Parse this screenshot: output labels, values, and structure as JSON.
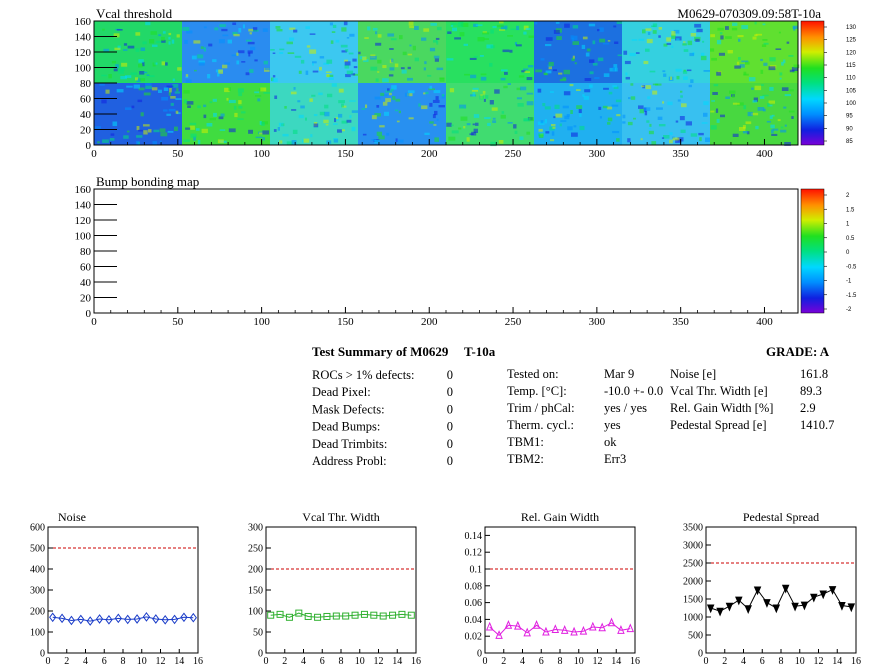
{
  "maps": {
    "top": {
      "title": "Vcal threshold",
      "id_label": "M0629-070309.09:58T-10a",
      "x_ticks": [
        "0",
        "50",
        "100",
        "150",
        "200",
        "250",
        "300",
        "350",
        "400"
      ],
      "y_ticks": [
        "0",
        "20",
        "40",
        "60",
        "80",
        "100",
        "120",
        "140",
        "160"
      ],
      "scale_labels": [
        "130",
        "125",
        "120",
        "115",
        "110",
        "105",
        "100",
        "95",
        "90",
        "85"
      ]
    },
    "bottom": {
      "title": "Bump bonding map",
      "x_ticks": [
        "0",
        "50",
        "100",
        "150",
        "200",
        "250",
        "300",
        "350",
        "400"
      ],
      "y_ticks": [
        "0",
        "20",
        "40",
        "60",
        "80",
        "100",
        "120",
        "140",
        "160"
      ],
      "scale_labels": [
        "2",
        "1.5",
        "1",
        "0.5",
        "0",
        "-0.5",
        "-1",
        "-1.5",
        "-2"
      ]
    }
  },
  "summary": {
    "heading": "Test Summary of M0629",
    "test_id": "T-10a",
    "grade": "GRADE:  A",
    "defects": [
      {
        "label": "ROCs > 1% defects:",
        "value": "0"
      },
      {
        "label": "Dead Pixel:",
        "value": "0"
      },
      {
        "label": "Mask Defects:",
        "value": "0"
      },
      {
        "label": "Dead Bumps:",
        "value": "0"
      },
      {
        "label": "Dead Trimbits:",
        "value": "0"
      },
      {
        "label": "Address Probl:",
        "value": "0"
      }
    ],
    "conditions": [
      {
        "label": "Tested on:",
        "value": "Mar 9"
      },
      {
        "label": "Temp. [°C]:",
        "value": "-10.0 +- 0.0"
      },
      {
        "label": "Trim / phCal:",
        "value": "yes / yes"
      },
      {
        "label": "Therm. cycl.:",
        "value": "yes"
      },
      {
        "label": "TBM1:",
        "value": "ok"
      },
      {
        "label": "TBM2:",
        "value": "Err3"
      }
    ],
    "results": [
      {
        "label": "Noise [e]",
        "value": "161.8"
      },
      {
        "label": "Vcal Thr. Width [e]",
        "value": "89.3"
      },
      {
        "label": "Rel. Gain Width [%]",
        "value": "2.9"
      },
      {
        "label": "Pedestal Spread [e]",
        "value": "1410.7"
      }
    ]
  },
  "chart_data": [
    {
      "type": "line",
      "title": "Noise",
      "x": [
        0,
        1,
        2,
        3,
        4,
        5,
        6,
        7,
        8,
        9,
        10,
        11,
        12,
        13,
        14,
        15
      ],
      "values": [
        170,
        165,
        155,
        160,
        152,
        162,
        158,
        165,
        160,
        162,
        172,
        162,
        158,
        160,
        170,
        168
      ],
      "ylim": [
        0,
        600
      ],
      "xlim": [
        0,
        16
      ],
      "threshold": 500,
      "y_ticks": [
        "0",
        "100",
        "200",
        "300",
        "400",
        "500",
        "600"
      ],
      "x_ticks": [
        "0",
        "2",
        "4",
        "6",
        "8",
        "10",
        "12",
        "14",
        "16"
      ],
      "color": "#1a3cc8",
      "marker": "diamond"
    },
    {
      "type": "line",
      "title": "Vcal Thr. Width",
      "x": [
        0,
        1,
        2,
        3,
        4,
        5,
        6,
        7,
        8,
        9,
        10,
        11,
        12,
        13,
        14,
        15
      ],
      "values": [
        90,
        92,
        85,
        95,
        87,
        85,
        87,
        88,
        88,
        90,
        92,
        90,
        88,
        90,
        92,
        90
      ],
      "ylim": [
        0,
        300
      ],
      "xlim": [
        0,
        16
      ],
      "threshold": 200,
      "y_ticks": [
        "0",
        "50",
        "100",
        "150",
        "200",
        "250",
        "300"
      ],
      "x_ticks": [
        "0",
        "2",
        "4",
        "6",
        "8",
        "10",
        "12",
        "14",
        "16"
      ],
      "color": "#30b030",
      "marker": "square"
    },
    {
      "type": "line",
      "title": "Rel. Gain Width",
      "x": [
        0,
        1,
        2,
        3,
        4,
        5,
        6,
        7,
        8,
        9,
        10,
        11,
        12,
        13,
        14,
        15
      ],
      "values": [
        0.031,
        0.021,
        0.033,
        0.032,
        0.024,
        0.033,
        0.025,
        0.028,
        0.027,
        0.025,
        0.026,
        0.031,
        0.03,
        0.036,
        0.027,
        0.029
      ],
      "ylim": [
        0,
        0.15
      ],
      "xlim": [
        0,
        16
      ],
      "threshold": 0.1,
      "y_ticks": [
        "0",
        "0.02",
        "0.04",
        "0.06",
        "0.08",
        "0.1",
        "0.12",
        "0.14"
      ],
      "x_ticks": [
        "0",
        "2",
        "4",
        "6",
        "8",
        "10",
        "12",
        "14",
        "16"
      ],
      "color": "#e020e0",
      "marker": "triangle-up"
    },
    {
      "type": "line",
      "title": "Pedestal Spread",
      "x": [
        0,
        1,
        2,
        3,
        4,
        5,
        6,
        7,
        8,
        9,
        10,
        11,
        12,
        13,
        14,
        15
      ],
      "values": [
        1250,
        1160,
        1300,
        1470,
        1230,
        1750,
        1400,
        1250,
        1800,
        1300,
        1330,
        1550,
        1640,
        1760,
        1320,
        1280
      ],
      "ylim": [
        0,
        3500
      ],
      "xlim": [
        0,
        16
      ],
      "threshold": 2500,
      "y_ticks": [
        "0",
        "500",
        "1000",
        "1500",
        "2000",
        "2500",
        "3000",
        "3500"
      ],
      "x_ticks": [
        "0",
        "2",
        "4",
        "6",
        "8",
        "10",
        "12",
        "14",
        "16"
      ],
      "color": "#000000",
      "marker": "triangle-down"
    }
  ]
}
